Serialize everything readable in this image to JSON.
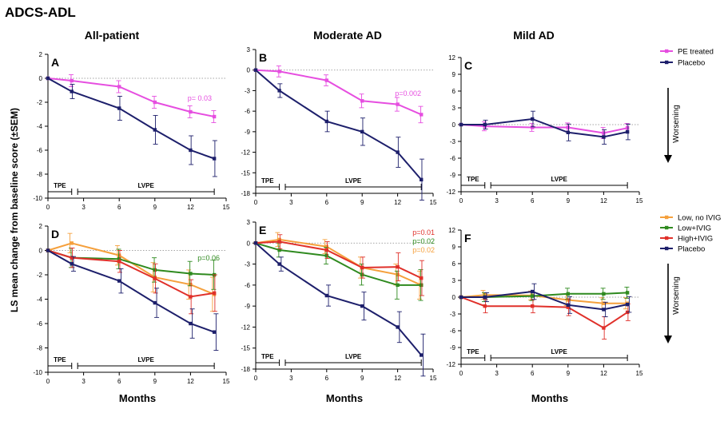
{
  "figure_title": "ADCS-ADL",
  "y_axis_label": "LS mean change from baseline score (±SEM)",
  "x_axis_label": "Months",
  "column_titles": [
    "All-patient",
    "Moderate AD",
    "Mild AD"
  ],
  "phase_labels": {
    "short": "TPE",
    "long": "LVPE"
  },
  "worsening_label": "Worsening",
  "colors": {
    "pe_treated": "#e64ee0",
    "placebo": "#1d1f6b",
    "low_no_ivig": "#f5a03c",
    "low_ivig": "#2f8a1f",
    "high_ivig": "#e0302a"
  },
  "legends": {
    "top": [
      {
        "label": "PE treated",
        "color": "#e64ee0"
      },
      {
        "label": "Placebo",
        "color": "#1d1f6b"
      }
    ],
    "bottom": [
      {
        "label": "Low, no IVIG",
        "color": "#f5a03c"
      },
      {
        "label": "Low+IVIG",
        "color": "#2f8a1f"
      },
      {
        "label": "High+IVIG",
        "color": "#e0302a"
      },
      {
        "label": "Placebo",
        "color": "#1d1f6b"
      }
    ]
  },
  "chart_data": [
    {
      "panel": "A",
      "type": "line",
      "xlim": [
        0,
        15
      ],
      "ylim": [
        -10,
        2
      ],
      "xticks": [
        0,
        3,
        6,
        9,
        12,
        15
      ],
      "yticks": [
        2,
        0,
        -2,
        -4,
        -6,
        -8,
        -10
      ],
      "series": [
        {
          "name": "PE treated",
          "color": "#e64ee0",
          "x": [
            0,
            2,
            6,
            9,
            12,
            14
          ],
          "y": [
            0,
            -0.2,
            -0.7,
            -2.0,
            -2.8,
            -3.2
          ],
          "err": [
            0,
            0.5,
            0.5,
            0.5,
            0.5,
            0.5
          ]
        },
        {
          "name": "Placebo",
          "color": "#1d1f6b",
          "x": [
            0,
            2,
            6,
            9,
            12,
            14
          ],
          "y": [
            0,
            -1.1,
            -2.5,
            -4.3,
            -6.0,
            -6.7
          ],
          "err": [
            0,
            0.6,
            1.0,
            1.2,
            1.2,
            1.5
          ]
        }
      ],
      "annotations": [
        {
          "text": "p= 0.03",
          "color": "#e64ee0"
        }
      ]
    },
    {
      "panel": "B",
      "type": "line",
      "xlim": [
        0,
        15
      ],
      "ylim": [
        -18,
        3
      ],
      "xticks": [
        0,
        3,
        6,
        9,
        12,
        15
      ],
      "yticks": [
        3,
        0,
        -3,
        -6,
        -9,
        -12,
        -15,
        -18
      ],
      "series": [
        {
          "name": "PE treated",
          "color": "#e64ee0",
          "x": [
            0,
            2,
            6,
            9,
            12,
            14
          ],
          "y": [
            0,
            -0.2,
            -1.5,
            -4.5,
            -5.0,
            -6.5
          ],
          "err": [
            0,
            0.8,
            0.8,
            1.0,
            1.0,
            1.2
          ]
        },
        {
          "name": "Placebo",
          "color": "#1d1f6b",
          "x": [
            0,
            2,
            6,
            9,
            12,
            14
          ],
          "y": [
            0,
            -3.0,
            -7.5,
            -9.0,
            -12.0,
            -16.0
          ],
          "err": [
            0,
            1.0,
            1.5,
            2.0,
            2.2,
            3.0
          ]
        }
      ],
      "annotations": [
        {
          "text": "p=0.002",
          "color": "#e64ee0"
        }
      ]
    },
    {
      "panel": "C",
      "type": "line",
      "xlim": [
        0,
        15
      ],
      "ylim": [
        -12,
        12
      ],
      "xticks": [
        0,
        3,
        6,
        9,
        12,
        15
      ],
      "yticks": [
        12,
        9,
        6,
        3,
        0,
        -3,
        -6,
        -9,
        -12
      ],
      "series": [
        {
          "name": "PE treated",
          "color": "#e64ee0",
          "x": [
            0,
            2,
            6,
            9,
            12,
            14
          ],
          "y": [
            0,
            -0.3,
            -0.5,
            -0.5,
            -1.5,
            -0.6
          ],
          "err": [
            0,
            0.8,
            0.7,
            0.8,
            1.0,
            0.8
          ]
        },
        {
          "name": "Placebo",
          "color": "#1d1f6b",
          "x": [
            0,
            2,
            6,
            9,
            12,
            14
          ],
          "y": [
            0,
            0.0,
            1.0,
            -1.4,
            -2.2,
            -1.3
          ],
          "err": [
            0,
            0.8,
            1.4,
            1.5,
            1.3,
            1.4
          ]
        }
      ],
      "annotations": []
    },
    {
      "panel": "D",
      "type": "line",
      "xlim": [
        0,
        15
      ],
      "ylim": [
        -10,
        2
      ],
      "xticks": [
        0,
        3,
        6,
        9,
        12,
        15
      ],
      "yticks": [
        2,
        0,
        -2,
        -4,
        -6,
        -8,
        -10
      ],
      "series": [
        {
          "name": "Low, no IVIG",
          "color": "#f5a03c",
          "x": [
            0,
            2,
            6,
            9,
            12,
            14
          ],
          "y": [
            0,
            0.6,
            -0.4,
            -2.2,
            -2.8,
            -3.6
          ],
          "err": [
            0,
            0.8,
            0.8,
            1.2,
            1.2,
            1.4
          ]
        },
        {
          "name": "Low+IVIG",
          "color": "#2f8a1f",
          "x": [
            0,
            2,
            6,
            9,
            12,
            14
          ],
          "y": [
            0,
            -0.6,
            -0.7,
            -1.6,
            -1.9,
            -2.0
          ],
          "err": [
            0,
            0.8,
            0.8,
            1.0,
            1.0,
            1.2
          ]
        },
        {
          "name": "High+IVIG",
          "color": "#e0302a",
          "x": [
            0,
            2,
            6,
            9,
            12,
            14
          ],
          "y": [
            0,
            -0.6,
            -0.9,
            -2.3,
            -3.8,
            -3.5
          ],
          "err": [
            0,
            0.8,
            0.9,
            1.2,
            1.4,
            1.5
          ]
        },
        {
          "name": "Placebo",
          "color": "#1d1f6b",
          "x": [
            0,
            2,
            6,
            9,
            12,
            14
          ],
          "y": [
            0,
            -1.1,
            -2.5,
            -4.3,
            -6.0,
            -6.7
          ],
          "err": [
            0,
            0.6,
            1.0,
            1.2,
            1.2,
            1.5
          ]
        }
      ],
      "annotations": [
        {
          "text": "p=0.06",
          "color": "#2f8a1f"
        }
      ]
    },
    {
      "panel": "E",
      "type": "line",
      "xlim": [
        0,
        15
      ],
      "ylim": [
        -18,
        3
      ],
      "xticks": [
        0,
        3,
        6,
        9,
        12,
        15
      ],
      "yticks": [
        3,
        0,
        -3,
        -6,
        -9,
        -12,
        -15,
        -18
      ],
      "series": [
        {
          "name": "Low, no IVIG",
          "color": "#f5a03c",
          "x": [
            0,
            2,
            6,
            9,
            12,
            14
          ],
          "y": [
            0,
            0.5,
            -0.5,
            -3.5,
            -4.5,
            -6.0
          ],
          "err": [
            0,
            1.0,
            1.0,
            1.5,
            1.5,
            2.0
          ]
        },
        {
          "name": "Low+IVIG",
          "color": "#2f8a1f",
          "x": [
            0,
            2,
            6,
            9,
            12,
            14
          ],
          "y": [
            0,
            -1.0,
            -1.8,
            -4.5,
            -6.0,
            -6.0
          ],
          "err": [
            0,
            1.0,
            1.2,
            1.5,
            2.0,
            2.2
          ]
        },
        {
          "name": "High+IVIG",
          "color": "#e0302a",
          "x": [
            0,
            2,
            6,
            9,
            12,
            14
          ],
          "y": [
            0,
            0.2,
            -1.0,
            -3.5,
            -3.4,
            -5.0
          ],
          "err": [
            0,
            1.0,
            1.2,
            1.5,
            2.0,
            2.5
          ]
        },
        {
          "name": "Placebo",
          "color": "#1d1f6b",
          "x": [
            0,
            2,
            6,
            9,
            12,
            14
          ],
          "y": [
            0,
            -3.0,
            -7.5,
            -9.0,
            -12.0,
            -16.0
          ],
          "err": [
            0,
            1.0,
            1.5,
            2.0,
            2.2,
            3.0
          ]
        }
      ],
      "annotations": [
        {
          "text": "p=0.01",
          "color": "#e0302a"
        },
        {
          "text": "p=0.02",
          "color": "#2f8a1f"
        },
        {
          "text": "p=0.02",
          "color": "#f5a03c"
        }
      ]
    },
    {
      "panel": "F",
      "type": "line",
      "xlim": [
        0,
        15
      ],
      "ylim": [
        -12,
        12
      ],
      "xticks": [
        0,
        3,
        6,
        9,
        12,
        15
      ],
      "yticks": [
        12,
        9,
        6,
        3,
        0,
        -3,
        -6,
        -9,
        -12
      ],
      "series": [
        {
          "name": "Low, no IVIG",
          "color": "#f5a03c",
          "x": [
            0,
            2,
            6,
            9,
            12,
            14
          ],
          "y": [
            0,
            0.4,
            0.3,
            -0.5,
            -1.1,
            -1.1
          ],
          "err": [
            0,
            0.8,
            0.8,
            1.0,
            1.0,
            1.0
          ]
        },
        {
          "name": "Low+IVIG",
          "color": "#2f8a1f",
          "x": [
            0,
            2,
            6,
            9,
            12,
            14
          ],
          "y": [
            0,
            0.0,
            0.2,
            0.6,
            0.6,
            0.8
          ],
          "err": [
            0,
            0.8,
            0.8,
            1.0,
            1.0,
            1.0
          ]
        },
        {
          "name": "High+IVIG",
          "color": "#e0302a",
          "x": [
            0,
            2,
            6,
            9,
            12,
            14
          ],
          "y": [
            0,
            -1.6,
            -1.6,
            -1.8,
            -5.5,
            -2.7
          ],
          "err": [
            0,
            1.2,
            1.2,
            1.5,
            2.0,
            1.5
          ]
        },
        {
          "name": "Placebo",
          "color": "#1d1f6b",
          "x": [
            0,
            2,
            6,
            9,
            12,
            14
          ],
          "y": [
            0,
            0.0,
            1.0,
            -1.4,
            -2.2,
            -1.3
          ],
          "err": [
            0,
            0.8,
            1.4,
            1.5,
            1.3,
            1.4
          ]
        }
      ],
      "annotations": []
    }
  ]
}
